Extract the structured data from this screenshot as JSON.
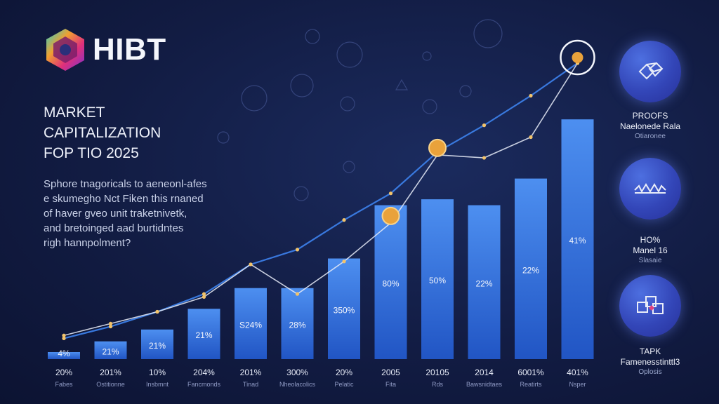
{
  "brand": {
    "name": "HIBT"
  },
  "headline": {
    "line1": "MARKET",
    "line2": "CAPITALIZATION",
    "line3": "FOP TIO 2025"
  },
  "intro": {
    "lines": [
      "Sphore tnagoricals to aeneonl-afes",
      "e skumegho Nct Fiken this rnaned",
      "of haver gveo unit traketnivetk,",
      "and bretoinged aad burtidntes",
      "righ hannpolment?"
    ]
  },
  "colors": {
    "bar_top": "#4d8ff0",
    "bar_bottom": "#2155c4",
    "line_blue": "#3b7de6",
    "line_white": "#e8ecf8",
    "coin": "#e9a23b"
  },
  "chart_data": {
    "type": "bar",
    "categories": [
      "Fabes",
      "Ostitionne",
      "Insbmnt",
      "Fancmonds",
      "Tinad",
      "Nheolacolics",
      "Pelatic",
      "Fita",
      "Rds",
      "Bawsnidtaes",
      "Reatirts",
      "Nsper"
    ],
    "bar_values": [
      2,
      6,
      10,
      17,
      24,
      24,
      34,
      52,
      54,
      52,
      61,
      81
    ],
    "bar_labels": [
      "4%",
      "21%",
      "21%",
      "21%",
      "S24%",
      "28%",
      "350%",
      "80%",
      "50%",
      "22%",
      "22%",
      "41%"
    ],
    "x_labels": [
      "20%",
      "201%",
      "10%",
      "204%",
      "201%",
      "300%",
      "20%",
      "2005",
      "20105",
      "2014",
      "6001%",
      "401%"
    ],
    "line_series": [
      {
        "name": "trend-blue",
        "values": [
          7,
          11,
          16,
          22,
          32,
          37,
          47,
          56,
          70,
          79,
          89,
          100
        ]
      },
      {
        "name": "trend-white",
        "values": [
          8,
          12,
          16,
          21,
          32,
          22,
          33,
          46,
          69,
          68,
          75,
          100
        ]
      }
    ],
    "ylim": [
      0,
      100
    ],
    "title": "MARKET CAPITALIZATION FOP TIO 2025"
  },
  "side_cards": [
    {
      "title": "PROOFS",
      "sub": "Naelonede Rala",
      "note": "Otiaronee"
    },
    {
      "title": "HO%",
      "sub": "Manel 16",
      "note": "Slasaie"
    },
    {
      "title": "TAPK",
      "sub": "Famenesstinttl3",
      "note": "Oplosis"
    }
  ]
}
